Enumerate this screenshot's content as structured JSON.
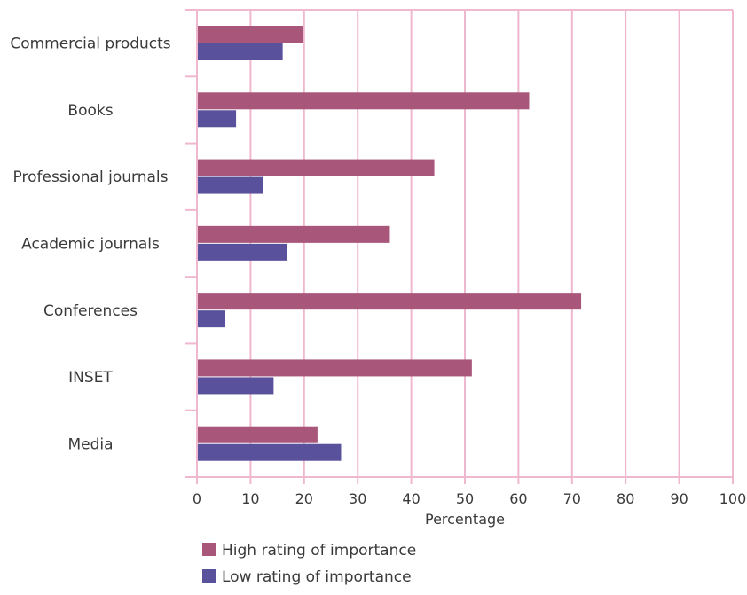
{
  "chart_data": {
    "type": "bar",
    "orientation": "horizontal",
    "categories": [
      "Commercial products",
      "Books",
      "Professional journals",
      "Academic journals",
      "Conferences",
      "INSET",
      "Media"
    ],
    "series": [
      {
        "name": "High rating of importance",
        "values": [
          19.7,
          62,
          44.3,
          36,
          71.7,
          51.3,
          22.5
        ],
        "color": "#a8567a"
      },
      {
        "name": "Low rating of importance",
        "values": [
          16,
          7.3,
          12.3,
          16.8,
          5.3,
          14.3,
          26.9
        ],
        "color": "#5a519c"
      }
    ],
    "xlabel": "Percentage",
    "ylabel": "",
    "title": "",
    "xlim": [
      0,
      100
    ],
    "xticks": [
      0,
      10,
      20,
      30,
      40,
      50,
      60,
      70,
      80,
      90,
      100
    ],
    "grid": true,
    "grid_color": "#f0b8cf",
    "legend_position": "bottom"
  }
}
